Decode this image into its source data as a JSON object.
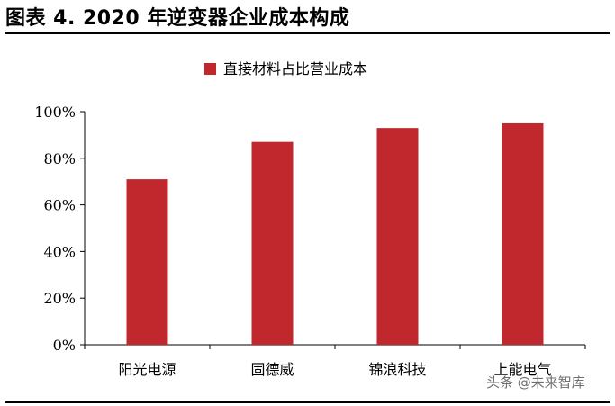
{
  "figure": {
    "title": "图表 4.   2020 年逆变器企业成本构成"
  },
  "chart_data": {
    "type": "bar",
    "categories": [
      "阳光电源",
      "固德威",
      "锦浪科技",
      "上能电气"
    ],
    "series": [
      {
        "name": "直接材料占比营业成本",
        "values": [
          71,
          87,
          93,
          95
        ],
        "color": "#C0282E"
      }
    ],
    "yticks": [
      "0%",
      "20%",
      "40%",
      "60%",
      "80%",
      "100%"
    ],
    "ylim": [
      0,
      100
    ],
    "legend": "top-center",
    "grid": false
  },
  "watermark": "头条 @未来智库"
}
